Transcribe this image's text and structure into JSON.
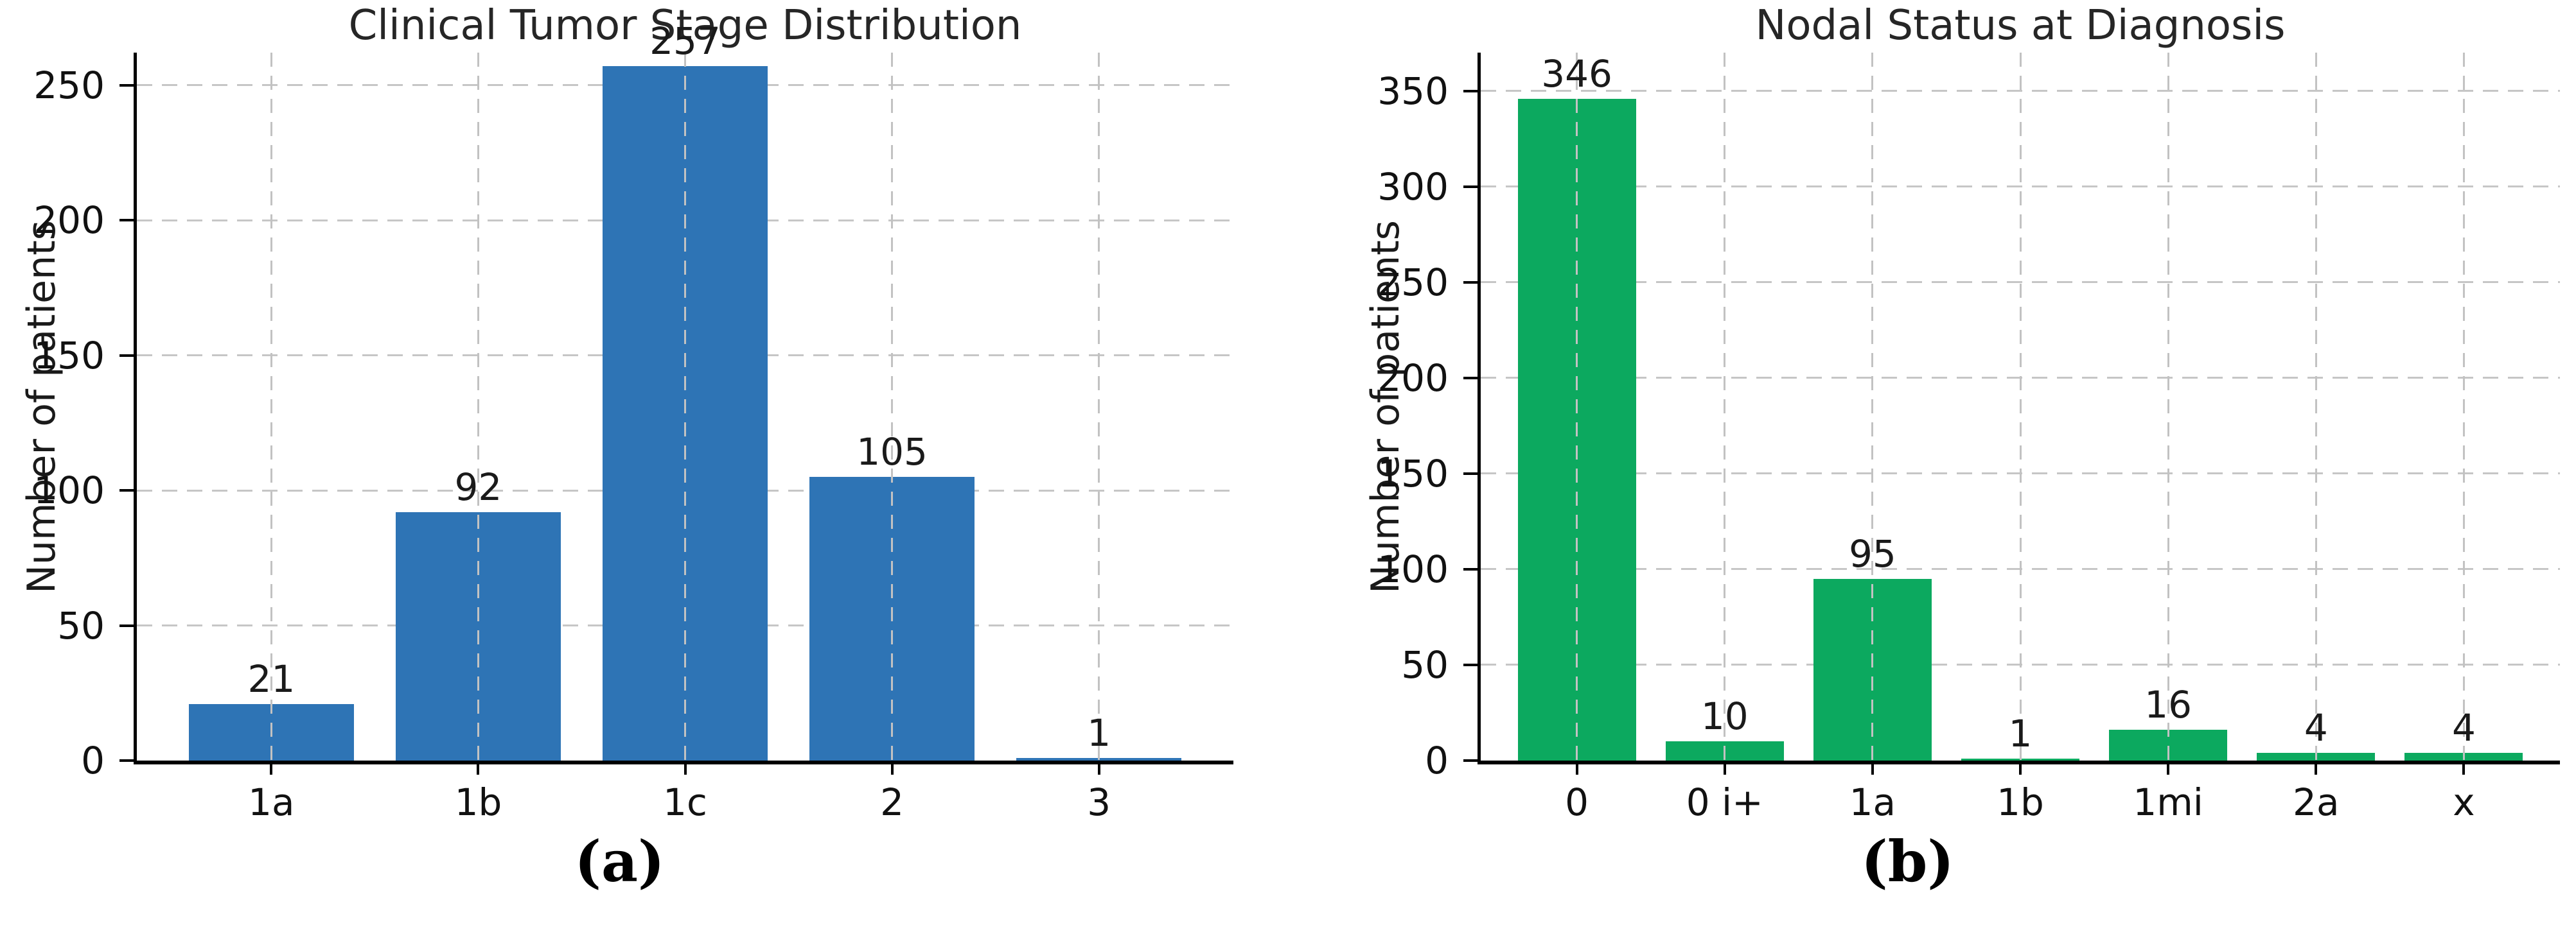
{
  "figure": {
    "background": "#ffffff",
    "panel_count": 2
  },
  "colors": {
    "bar_blue": "#2e74b5",
    "bar_green": "#0ca95f",
    "grid": "#c6c6c6",
    "axis": "#000000",
    "text": "#1a1a1a",
    "background": "#ffffff"
  },
  "chart_data": [
    {
      "type": "bar",
      "title": "Clinical Tumor Stage Distribution",
      "xlabel": "",
      "ylabel": "Number of patients",
      "categories": [
        "1a",
        "1b",
        "1c",
        "2",
        "3"
      ],
      "values": [
        21,
        92,
        257,
        105,
        1
      ],
      "bar_labels": [
        "21",
        "92",
        "257",
        "105",
        "1"
      ],
      "bar_color": "#2e74b5",
      "ylim": [
        0,
        262
      ],
      "yticks": [
        0,
        50,
        100,
        150,
        200,
        250
      ],
      "grid": "dashed-both-directions",
      "legend": null,
      "panel_label": "(a)"
    },
    {
      "type": "bar",
      "title": "Nodal Status at Diagnosis",
      "xlabel": "",
      "ylabel": "Number of patients",
      "categories": [
        "0",
        "0 i+",
        "1a",
        "1b",
        "1mi",
        "2a",
        "x"
      ],
      "values": [
        346,
        10,
        95,
        1,
        16,
        4,
        4
      ],
      "bar_labels": [
        "346",
        "10",
        "95",
        "1",
        "16",
        "4",
        "4"
      ],
      "bar_color": "#0ca95f",
      "ylim": [
        0,
        370
      ],
      "yticks": [
        0,
        50,
        100,
        150,
        200,
        250,
        300,
        350
      ],
      "grid": "dashed-both-directions",
      "legend": null,
      "panel_label": "(b)"
    }
  ]
}
